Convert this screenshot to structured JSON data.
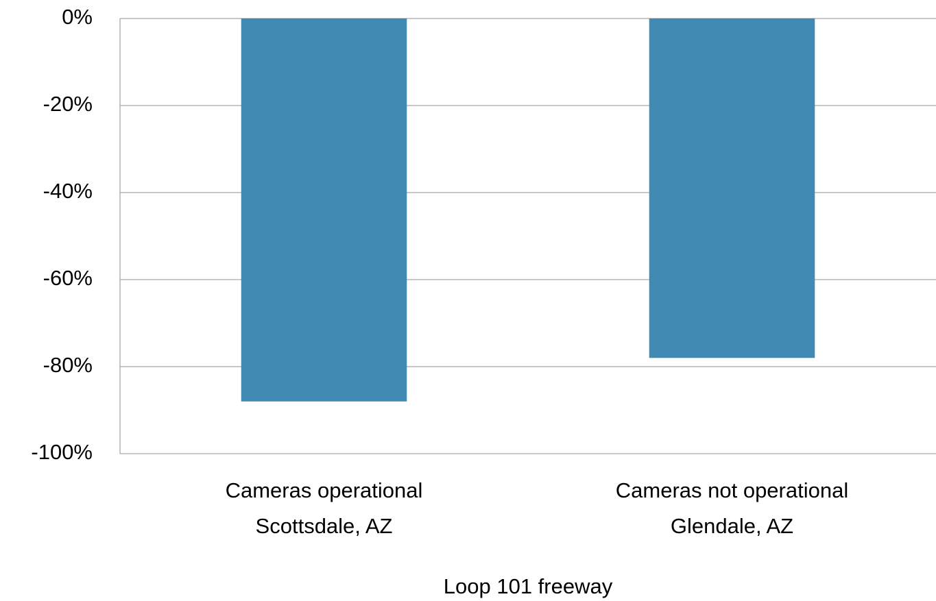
{
  "chart_data": {
    "type": "bar",
    "categories": [
      [
        "Cameras operational",
        "Scottsdale, AZ"
      ],
      [
        "Cameras not operational",
        "Glendale, AZ"
      ]
    ],
    "values": [
      -88,
      -78
    ],
    "color": "#418ab3",
    "x_label": "Loop 101 freeway",
    "ylim": [
      -100,
      0
    ],
    "yticks": [
      {
        "value": 0,
        "label": "0%"
      },
      {
        "value": -20,
        "label": "-20%"
      },
      {
        "value": -40,
        "label": "-40%"
      },
      {
        "value": -60,
        "label": "-60%"
      },
      {
        "value": -80,
        "label": "-80%"
      },
      {
        "value": -100,
        "label": "-100%"
      }
    ],
    "grid": true
  }
}
